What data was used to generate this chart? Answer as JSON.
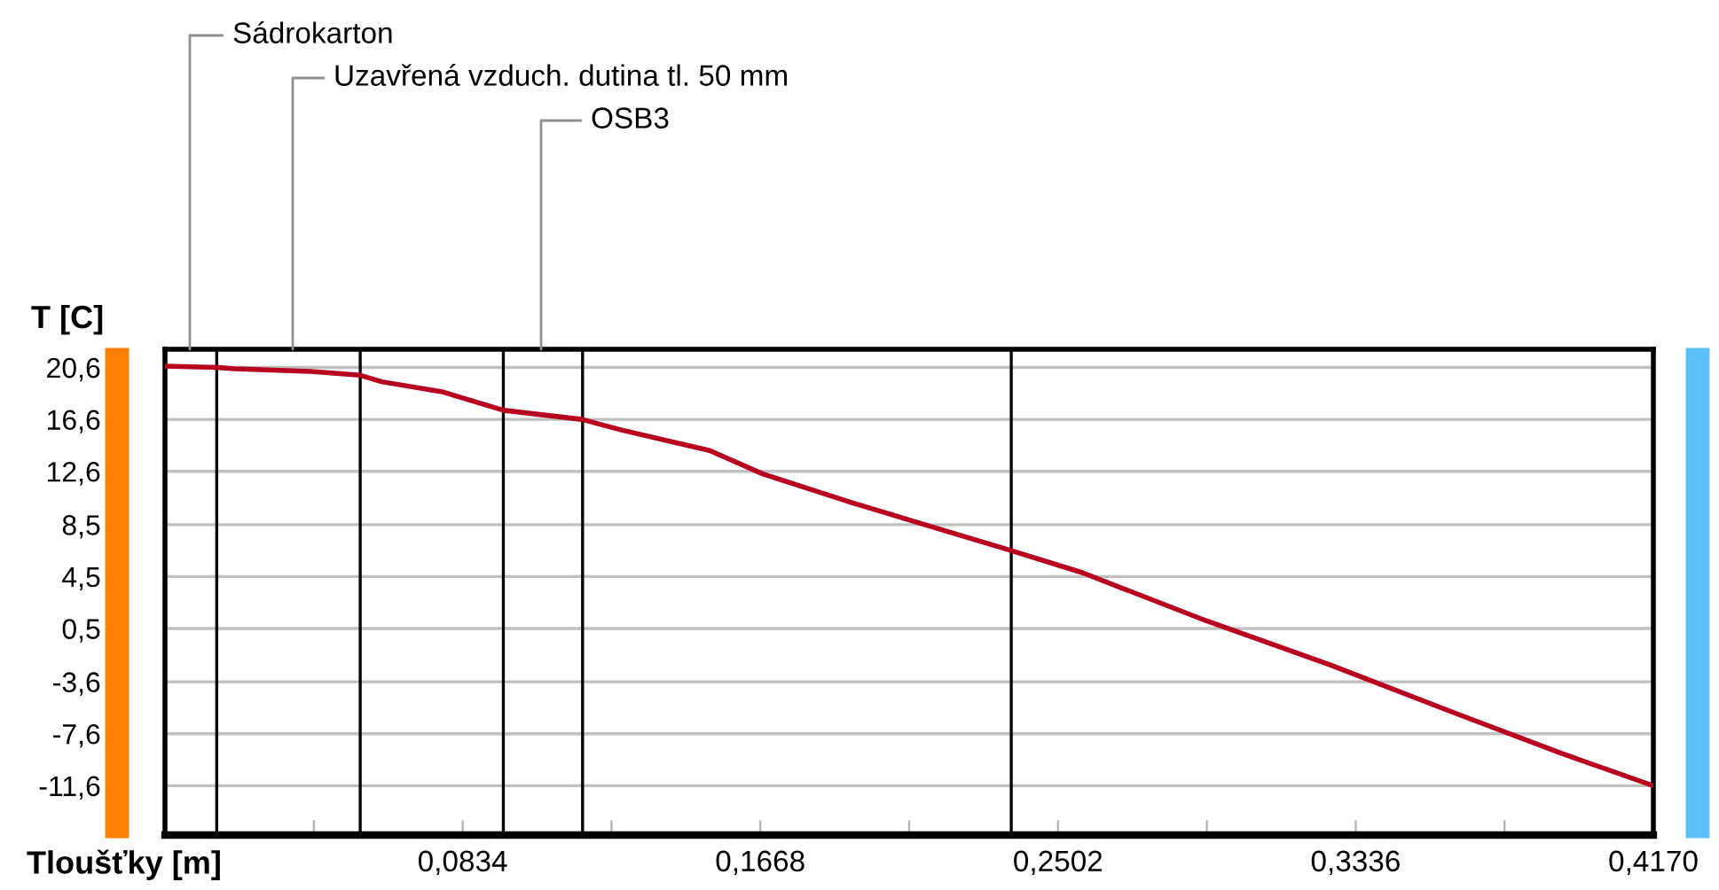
{
  "chart_data": {
    "type": "line",
    "xlabel": "Tloušťky [m]",
    "ylabel": "T [C]",
    "x": [
      0,
      0.0145,
      0.0195,
      0.0408,
      0.0547,
      0.0607,
      0.078,
      0.0949,
      0.1168,
      0.1277,
      0.1526,
      0.1675,
      0.1923,
      0.2371,
      0.257,
      0.2917,
      0.3265,
      0.3613,
      0.3911,
      0.417
    ],
    "series": [
      {
        "color": "#b8001f",
        "values": [
          20.7,
          20.6,
          20.5,
          20.3,
          20.0,
          19.5,
          18.7,
          17.3,
          16.6,
          15.8,
          14.2,
          12.4,
          10.2,
          6.5,
          4.8,
          1.1,
          -2.3,
          -6.0,
          -9.1,
          -11.6
        ]
      }
    ],
    "xlim": [
      0,
      0.417
    ],
    "ylim": [
      -15.4,
      22.0
    ],
    "xticks": [
      {
        "value": 0.0417,
        "label": null
      },
      {
        "value": 0.0834,
        "label": "0,0834"
      },
      {
        "value": 0.1251,
        "label": null
      },
      {
        "value": 0.1668,
        "label": "0,1668"
      },
      {
        "value": 0.2085,
        "label": null
      },
      {
        "value": 0.2502,
        "label": "0,2502"
      },
      {
        "value": 0.2919,
        "label": null
      },
      {
        "value": 0.3336,
        "label": "0,3336"
      },
      {
        "value": 0.3753,
        "label": null
      },
      {
        "value": 0.417,
        "label": "0,4170"
      }
    ],
    "yticks": [
      {
        "value": 20.6,
        "label": "20,6"
      },
      {
        "value": 16.6,
        "label": "16,6"
      },
      {
        "value": 12.6,
        "label": "12,6"
      },
      {
        "value": 8.5,
        "label": "8,5"
      },
      {
        "value": 4.5,
        "label": "4,5"
      },
      {
        "value": 0.5,
        "label": "0,5"
      },
      {
        "value": -3.6,
        "label": "-3,6"
      },
      {
        "value": -7.6,
        "label": "-7,6"
      },
      {
        "value": -11.6,
        "label": "-11,6"
      }
    ],
    "grid": "y",
    "ref_lines": [
      {
        "axis": "x",
        "value": 0.0145,
        "color": "#000000"
      },
      {
        "axis": "x",
        "value": 0.0547,
        "color": "#000000"
      },
      {
        "axis": "x",
        "value": 0.0948,
        "color": "#000000"
      },
      {
        "axis": "x",
        "value": 0.117,
        "color": "#000000"
      },
      {
        "axis": "x",
        "value": 0.2371,
        "color": "#000000"
      }
    ],
    "annotations": [
      "Sádrokarton",
      "Uzavřená vzduch. dutina tl. 50 mm",
      "OSB3"
    ]
  }
}
